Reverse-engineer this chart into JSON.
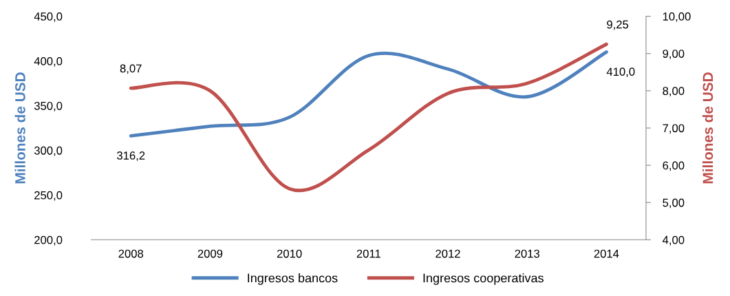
{
  "chart_data": {
    "type": "line",
    "categories": [
      "2008",
      "2009",
      "2010",
      "2011",
      "2012",
      "2013",
      "2014"
    ],
    "ylabel": "Millones de USD",
    "y2label": "Millones de USD",
    "ylim": [
      200,
      450
    ],
    "yticks": [
      {
        "value": 200,
        "label": "200,0"
      },
      {
        "value": 250,
        "label": "250,0"
      },
      {
        "value": 300,
        "label": "300,0"
      },
      {
        "value": 350,
        "label": "350,0"
      },
      {
        "value": 400,
        "label": "400,0"
      },
      {
        "value": 450,
        "label": "450,0"
      }
    ],
    "y2lim": [
      4,
      10
    ],
    "y2ticks": [
      {
        "value": 4,
        "label": "4,00"
      },
      {
        "value": 5,
        "label": "5,00"
      },
      {
        "value": 6,
        "label": "6,00"
      },
      {
        "value": 7,
        "label": "7,00"
      },
      {
        "value": 8,
        "label": "8,00"
      },
      {
        "value": 9,
        "label": "9,00"
      },
      {
        "value": 10,
        "label": "10,00"
      }
    ],
    "series": [
      {
        "name": "Ingresos bancos",
        "color": "#4f81bd",
        "values": [
          316.2,
          327,
          337,
          406,
          391,
          360,
          410.0
        ],
        "value_labels": [
          "316,2",
          null,
          null,
          null,
          null,
          null,
          "410,0"
        ]
      },
      {
        "name": "Ingresos cooperativas",
        "color": "#c0504d",
        "axis": "y2",
        "values": [
          8.07,
          8.0,
          5.37,
          6.41,
          7.93,
          8.2,
          9.25
        ],
        "value_labels": [
          "8,07",
          null,
          null,
          null,
          null,
          null,
          "9,25"
        ]
      }
    ],
    "legend": "bottom",
    "grid": false,
    "line_style": "solid",
    "marker": "none"
  }
}
